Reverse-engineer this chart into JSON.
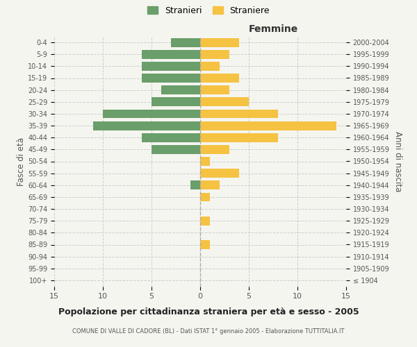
{
  "age_groups": [
    "100+",
    "95-99",
    "90-94",
    "85-89",
    "80-84",
    "75-79",
    "70-74",
    "65-69",
    "60-64",
    "55-59",
    "50-54",
    "45-49",
    "40-44",
    "35-39",
    "30-34",
    "25-29",
    "20-24",
    "15-19",
    "10-14",
    "5-9",
    "0-4"
  ],
  "birth_years": [
    "≤ 1904",
    "1905-1909",
    "1910-1914",
    "1915-1919",
    "1920-1924",
    "1925-1929",
    "1930-1934",
    "1935-1939",
    "1940-1944",
    "1945-1949",
    "1950-1954",
    "1955-1959",
    "1960-1964",
    "1965-1969",
    "1970-1974",
    "1975-1979",
    "1980-1984",
    "1985-1989",
    "1990-1994",
    "1995-1999",
    "2000-2004"
  ],
  "males": [
    0,
    0,
    0,
    0,
    0,
    0,
    0,
    0,
    1,
    0,
    0,
    5,
    6,
    11,
    10,
    5,
    4,
    6,
    6,
    6,
    3
  ],
  "females": [
    0,
    0,
    0,
    1,
    0,
    1,
    0,
    1,
    2,
    4,
    1,
    3,
    8,
    14,
    8,
    5,
    3,
    4,
    2,
    3,
    4
  ],
  "male_color": "#6a9e6a",
  "female_color": "#f5c242",
  "background_color": "#f5f5f0",
  "grid_color": "#cccccc",
  "title": "Popolazione per cittadinanza straniera per età e sesso - 2005",
  "subtitle": "COMUNE DI VALLE DI CADORE (BL) - Dati ISTAT 1° gennaio 2005 - Elaborazione TUTTITALIA.IT",
  "ylabel_left": "Fasce di età",
  "ylabel_right": "Anni di nascita",
  "xlabel_right": "Femmine",
  "legend_male": "Stranieri",
  "legend_female": "Straniere",
  "xlim": 15,
  "bar_height": 0.75
}
